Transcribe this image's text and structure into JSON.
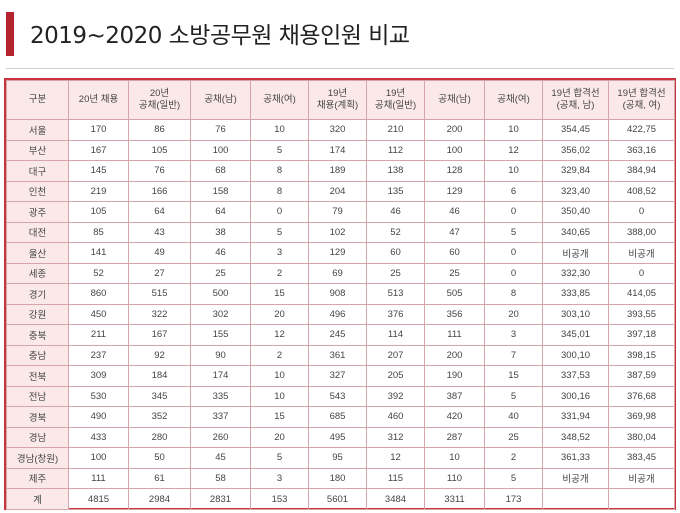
{
  "title": "2019~2020 소방공무원 채용인원 비교",
  "colors": {
    "accent": "#b5232f",
    "header_bg": "#fbe9ea",
    "border": "#c9343f"
  },
  "table": {
    "headers": [
      "구분",
      "20년 채용",
      "20년\n공채(일반)",
      "공채(남)",
      "공채(여)",
      "19년\n채용(계획)",
      "19년\n공채(일반)",
      "공채(남)",
      "공채(여)",
      "19년 합격선\n(공채, 남)",
      "19년 합격선\n(공채, 여)"
    ],
    "rows": [
      [
        "서울",
        "170",
        "86",
        "76",
        "10",
        "320",
        "210",
        "200",
        "10",
        "354,45",
        "422,75"
      ],
      [
        "부산",
        "167",
        "105",
        "100",
        "5",
        "174",
        "112",
        "100",
        "12",
        "356,02",
        "363,16"
      ],
      [
        "대구",
        "145",
        "76",
        "68",
        "8",
        "189",
        "138",
        "128",
        "10",
        "329,84",
        "384,94"
      ],
      [
        "인천",
        "219",
        "166",
        "158",
        "8",
        "204",
        "135",
        "129",
        "6",
        "323,40",
        "408,52"
      ],
      [
        "광주",
        "105",
        "64",
        "64",
        "0",
        "79",
        "46",
        "46",
        "0",
        "350,40",
        "0"
      ],
      [
        "대전",
        "85",
        "43",
        "38",
        "5",
        "102",
        "52",
        "47",
        "5",
        "340,65",
        "388,00"
      ],
      [
        "울산",
        "141",
        "49",
        "46",
        "3",
        "129",
        "60",
        "60",
        "0",
        "비공개",
        "비공개"
      ],
      [
        "세종",
        "52",
        "27",
        "25",
        "2",
        "69",
        "25",
        "25",
        "0",
        "332,30",
        "0"
      ],
      [
        "경기",
        "860",
        "515",
        "500",
        "15",
        "908",
        "513",
        "505",
        "8",
        "333,85",
        "414,05"
      ],
      [
        "강원",
        "450",
        "322",
        "302",
        "20",
        "496",
        "376",
        "356",
        "20",
        "303,10",
        "393,55"
      ],
      [
        "충북",
        "211",
        "167",
        "155",
        "12",
        "245",
        "114",
        "111",
        "3",
        "345,01",
        "397,18"
      ],
      [
        "충남",
        "237",
        "92",
        "90",
        "2",
        "361",
        "207",
        "200",
        "7",
        "300,10",
        "398,15"
      ],
      [
        "전북",
        "309",
        "184",
        "174",
        "10",
        "327",
        "205",
        "190",
        "15",
        "337,53",
        "387,59"
      ],
      [
        "전남",
        "530",
        "345",
        "335",
        "10",
        "543",
        "392",
        "387",
        "5",
        "300,16",
        "376,68"
      ],
      [
        "경북",
        "490",
        "352",
        "337",
        "15",
        "685",
        "460",
        "420",
        "40",
        "331,94",
        "369,98"
      ],
      [
        "경남",
        "433",
        "280",
        "260",
        "20",
        "495",
        "312",
        "287",
        "25",
        "348,52",
        "380,04"
      ],
      [
        "경남(창원)",
        "100",
        "50",
        "45",
        "5",
        "95",
        "12",
        "10",
        "2",
        "361,33",
        "383,45"
      ],
      [
        "제주",
        "111",
        "61",
        "58",
        "3",
        "180",
        "115",
        "110",
        "5",
        "비공개",
        "비공개"
      ]
    ],
    "total": [
      "계",
      "4815",
      "2984",
      "2831",
      "153",
      "5601",
      "3484",
      "3311",
      "173",
      "",
      ""
    ]
  }
}
